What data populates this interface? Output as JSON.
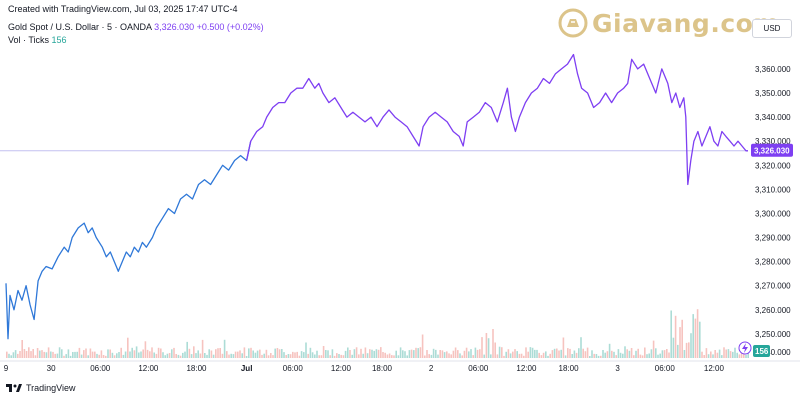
{
  "header": {
    "created": "Created with TradingView.com, Jul 03, 2025 17:47 UTC-4",
    "symbol": "Gold Spot / U.S. Dollar · 5 · OANDA",
    "quote": "3,326.030 +0.500 (+0.02%)",
    "vol_label": "Vol · Ticks",
    "vol_value": "156"
  },
  "logo": {
    "text": "Giavang.com",
    "mark": "gold-bar-logo"
  },
  "currency_label": "USD",
  "footer": {
    "brand": "TradingView"
  },
  "colors": {
    "line_early": "#2f78d8",
    "line_late": "#7e3ff2",
    "price_tag": "#7e3ff2",
    "vol_up": "#9ed6cf",
    "vol_down": "#f4b8b4",
    "hline": "#c3c0f0",
    "vol_badge": "#26a69a"
  },
  "chart_data": {
    "type": "line",
    "title": "Gold Spot / U.S. Dollar · 5 · OANDA",
    "ylim": [
      3240,
      3372
    ],
    "y_ticks": [
      3250,
      3260,
      3270,
      3280,
      3290,
      3300,
      3310,
      3320,
      3330,
      3340,
      3350,
      3360
    ],
    "y_tick_labels": [
      "3,250.000",
      "3,260.000",
      "3,270.000",
      "3,280.000",
      "3,290.000",
      "3,300.000",
      "3,310.000",
      "3,320.000",
      "3,330.000",
      "3,340.000",
      "3,350.000",
      "3,360.000"
    ],
    "bottom_tick_label": "3,240.000",
    "x_tick_labels": [
      {
        "t": 0,
        "label": "9"
      },
      {
        "t": 45,
        "label": "30"
      },
      {
        "t": 94,
        "label": "06:00"
      },
      {
        "t": 142,
        "label": "12:00"
      },
      {
        "t": 190,
        "label": "18:00"
      },
      {
        "t": 240,
        "label": "Jul"
      },
      {
        "t": 286,
        "label": "06:00"
      },
      {
        "t": 334,
        "label": "12:00"
      },
      {
        "t": 375,
        "label": "18:00"
      },
      {
        "t": 424,
        "label": "2"
      },
      {
        "t": 471,
        "label": "06:00"
      },
      {
        "t": 519,
        "label": "12:00"
      },
      {
        "t": 561,
        "label": "18:00"
      },
      {
        "t": 610,
        "label": "3"
      },
      {
        "t": 657,
        "label": "06:00"
      },
      {
        "t": 706,
        "label": "12:00"
      }
    ],
    "x_range": [
      0,
      740
    ],
    "color_change_t": 245,
    "series": [
      {
        "points": [
          [
            0,
            3271
          ],
          [
            2,
            3248
          ],
          [
            4,
            3266
          ],
          [
            8,
            3260
          ],
          [
            12,
            3268
          ],
          [
            16,
            3264
          ],
          [
            20,
            3270
          ],
          [
            24,
            3262
          ],
          [
            28,
            3256
          ],
          [
            32,
            3272
          ],
          [
            36,
            3276
          ],
          [
            40,
            3278
          ],
          [
            46,
            3277
          ],
          [
            52,
            3282
          ],
          [
            58,
            3286
          ],
          [
            62,
            3284
          ],
          [
            66,
            3290
          ],
          [
            72,
            3294
          ],
          [
            78,
            3296
          ],
          [
            82,
            3292
          ],
          [
            86,
            3294
          ],
          [
            90,
            3290
          ],
          [
            96,
            3286
          ],
          [
            100,
            3282
          ],
          [
            104,
            3284
          ],
          [
            108,
            3280
          ],
          [
            112,
            3276
          ],
          [
            116,
            3280
          ],
          [
            120,
            3284
          ],
          [
            124,
            3282
          ],
          [
            128,
            3286
          ],
          [
            132,
            3284
          ],
          [
            136,
            3288
          ],
          [
            140,
            3286
          ],
          [
            146,
            3290
          ],
          [
            150,
            3294
          ],
          [
            156,
            3298
          ],
          [
            162,
            3302
          ],
          [
            168,
            3300
          ],
          [
            174,
            3306
          ],
          [
            180,
            3308
          ],
          [
            186,
            3306
          ],
          [
            192,
            3312
          ],
          [
            198,
            3314
          ],
          [
            204,
            3312
          ],
          [
            210,
            3316
          ],
          [
            216,
            3320
          ],
          [
            222,
            3318
          ],
          [
            228,
            3322
          ],
          [
            234,
            3324
          ],
          [
            240,
            3322
          ],
          [
            244,
            3330
          ],
          [
            250,
            3334
          ],
          [
            256,
            3336
          ],
          [
            260,
            3340
          ],
          [
            266,
            3344
          ],
          [
            272,
            3346
          ],
          [
            278,
            3346
          ],
          [
            284,
            3350
          ],
          [
            290,
            3352
          ],
          [
            296,
            3352
          ],
          [
            302,
            3356
          ],
          [
            308,
            3352
          ],
          [
            312,
            3354
          ],
          [
            316,
            3350
          ],
          [
            322,
            3346
          ],
          [
            328,
            3348
          ],
          [
            334,
            3344
          ],
          [
            340,
            3340
          ],
          [
            346,
            3342
          ],
          [
            352,
            3340
          ],
          [
            358,
            3338
          ],
          [
            364,
            3340
          ],
          [
            370,
            3336
          ],
          [
            376,
            3340
          ],
          [
            382,
            3343
          ],
          [
            388,
            3340
          ],
          [
            394,
            3338
          ],
          [
            400,
            3336
          ],
          [
            406,
            3332
          ],
          [
            412,
            3328
          ],
          [
            416,
            3336
          ],
          [
            422,
            3340
          ],
          [
            428,
            3342
          ],
          [
            434,
            3340
          ],
          [
            440,
            3338
          ],
          [
            446,
            3334
          ],
          [
            452,
            3332
          ],
          [
            456,
            3328
          ],
          [
            460,
            3338
          ],
          [
            466,
            3340
          ],
          [
            472,
            3342
          ],
          [
            478,
            3346
          ],
          [
            484,
            3344
          ],
          [
            490,
            3338
          ],
          [
            496,
            3346
          ],
          [
            500,
            3352
          ],
          [
            504,
            3340
          ],
          [
            508,
            3334
          ],
          [
            512,
            3340
          ],
          [
            518,
            3346
          ],
          [
            524,
            3350
          ],
          [
            530,
            3352
          ],
          [
            536,
            3356
          ],
          [
            542,
            3354
          ],
          [
            548,
            3358
          ],
          [
            554,
            3360
          ],
          [
            560,
            3362
          ],
          [
            566,
            3366
          ],
          [
            570,
            3358
          ],
          [
            574,
            3352
          ],
          [
            580,
            3350
          ],
          [
            586,
            3344
          ],
          [
            592,
            3346
          ],
          [
            598,
            3350
          ],
          [
            604,
            3346
          ],
          [
            610,
            3350
          ],
          [
            616,
            3352
          ],
          [
            620,
            3354
          ],
          [
            624,
            3364
          ],
          [
            630,
            3360
          ],
          [
            636,
            3362
          ],
          [
            642,
            3356
          ],
          [
            648,
            3350
          ],
          [
            654,
            3360
          ],
          [
            660,
            3354
          ],
          [
            664,
            3346
          ],
          [
            668,
            3350
          ],
          [
            672,
            3344
          ],
          [
            676,
            3348
          ],
          [
            678,
            3340
          ],
          [
            680,
            3312
          ],
          [
            683,
            3322
          ],
          [
            686,
            3330
          ],
          [
            690,
            3334
          ],
          [
            694,
            3328
          ],
          [
            698,
            3332
          ],
          [
            702,
            3336
          ],
          [
            706,
            3330
          ],
          [
            710,
            3328
          ],
          [
            714,
            3334
          ],
          [
            718,
            3332
          ],
          [
            722,
            3330
          ],
          [
            726,
            3328
          ],
          [
            730,
            3330
          ],
          [
            734,
            3328
          ],
          [
            738,
            3326
          ],
          [
            740,
            3326
          ]
        ]
      }
    ],
    "last_price": 3326.03,
    "last_price_label": "3,326.030",
    "volume": {
      "label": "Vol · Ticks",
      "last": 156,
      "bars_hint": "low baseline volume with spikes near Jul 3 06:00"
    }
  }
}
